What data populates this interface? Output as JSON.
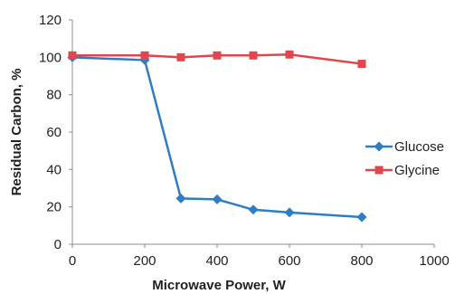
{
  "chart_data": {
    "type": "line",
    "xlabel": "Microwave Power, W",
    "ylabel": "Residual Carbon, %",
    "xlim": [
      0,
      1000
    ],
    "ylim": [
      0,
      120
    ],
    "x_ticks": [
      0,
      200,
      400,
      600,
      800,
      1000
    ],
    "y_ticks": [
      0,
      20,
      40,
      60,
      80,
      100,
      120
    ],
    "grid": false,
    "legend_position": "right",
    "series": [
      {
        "name": "Glucose",
        "color": "#2f7ec4",
        "marker": "diamond",
        "x": [
          0,
          200,
          300,
          400,
          500,
          600,
          800
        ],
        "y": [
          100,
          98.5,
          24.5,
          24,
          18.5,
          17,
          14.5
        ]
      },
      {
        "name": "Glycine",
        "color": "#e0474c",
        "marker": "square",
        "x": [
          0,
          200,
          300,
          400,
          500,
          600,
          800
        ],
        "y": [
          101,
          101,
          100,
          101,
          101,
          101.5,
          96.5
        ]
      }
    ]
  }
}
